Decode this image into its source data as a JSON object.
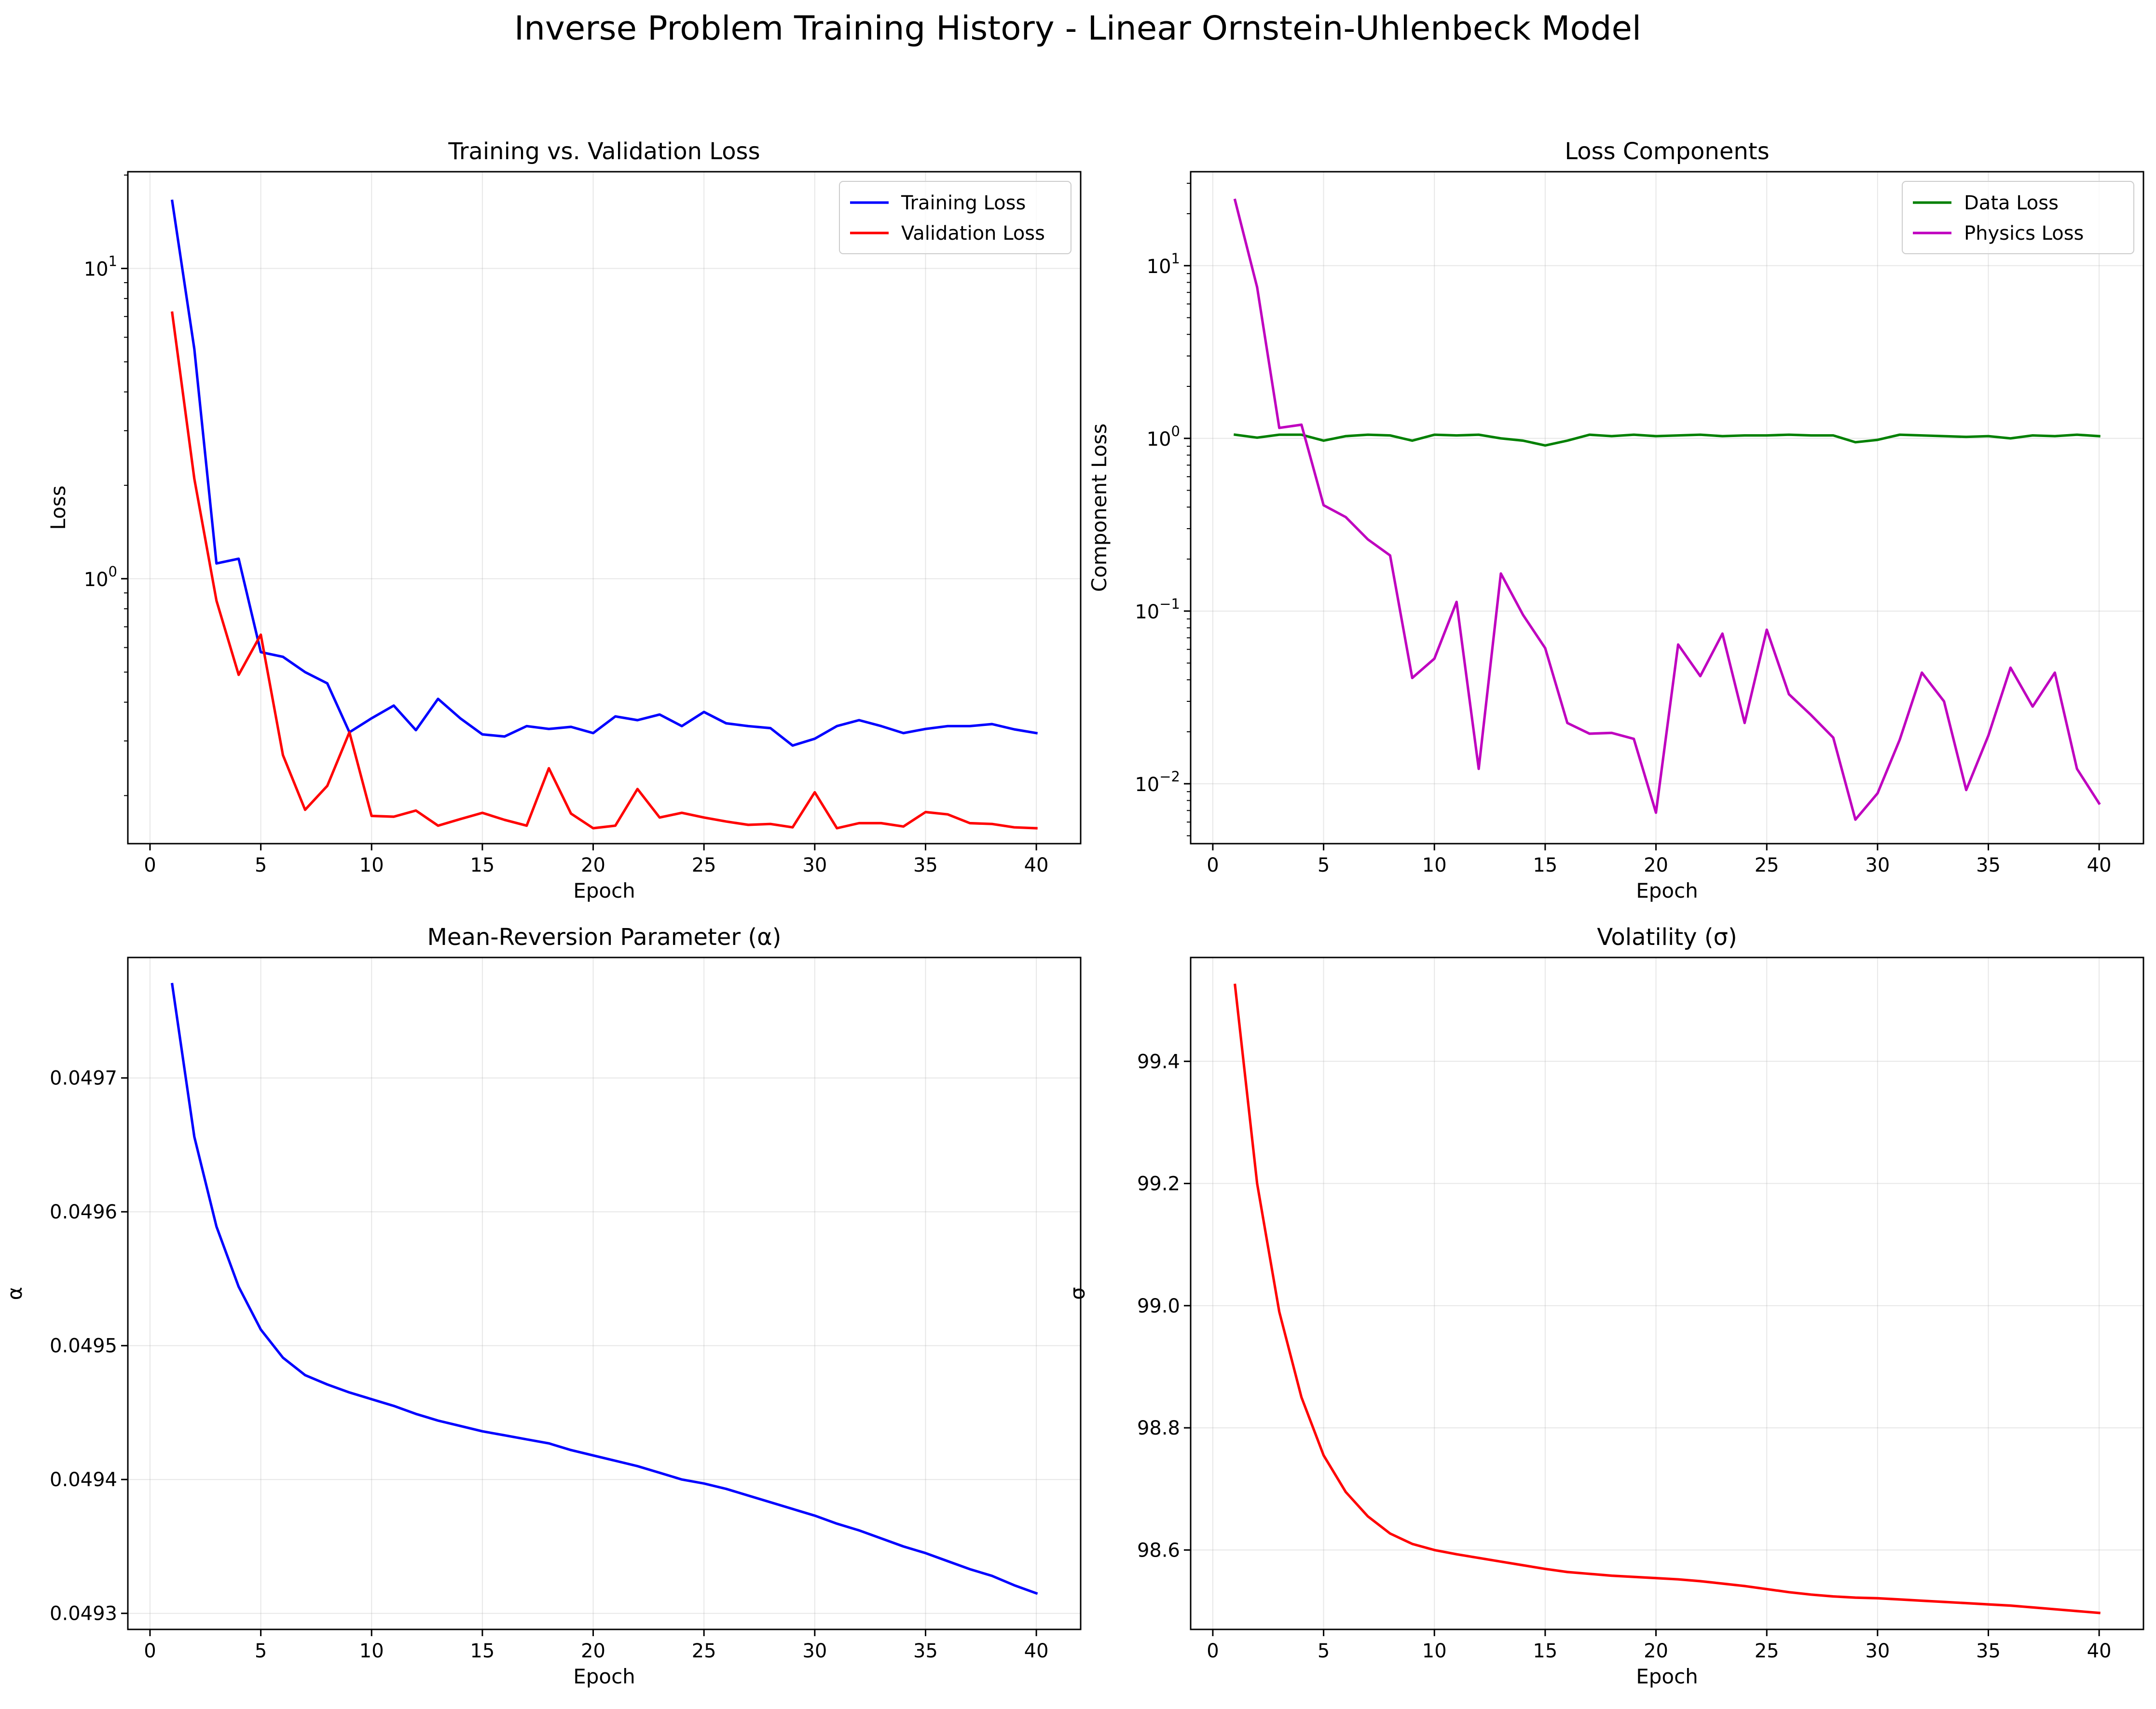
{
  "figure": {
    "title": "Inverse Problem Training History - Linear Ornstein-Uhlenbeck Model"
  },
  "chart_data": [
    {
      "type": "line",
      "title": "Training vs. Validation Loss",
      "xlabel": "Epoch",
      "ylabel": "Loss",
      "yscale": "log",
      "xlim": [
        -1,
        42
      ],
      "ylim": [
        0.14,
        20.5
      ],
      "xticks": [
        "0",
        "5",
        "10",
        "15",
        "20",
        "25",
        "30",
        "35",
        "40"
      ],
      "yticks": [
        {
          "value": 1,
          "base": "10",
          "exp": "0"
        },
        {
          "value": 10,
          "base": "10",
          "exp": "1"
        }
      ],
      "grid": true,
      "legend": "upper right",
      "x": [
        1,
        2,
        3,
        4,
        5,
        6,
        7,
        8,
        9,
        10,
        11,
        12,
        13,
        14,
        15,
        16,
        17,
        18,
        19,
        20,
        21,
        22,
        23,
        24,
        25,
        26,
        27,
        28,
        29,
        30,
        31,
        32,
        33,
        34,
        35,
        36,
        37,
        38,
        39,
        40
      ],
      "series": [
        {
          "name": "Training Loss",
          "color": "#0000ff",
          "values": [
            16.5,
            5.5,
            1.12,
            1.16,
            0.58,
            0.56,
            0.5,
            0.46,
            0.32,
            0.355,
            0.39,
            0.325,
            0.41,
            0.355,
            0.315,
            0.31,
            0.335,
            0.328,
            0.333,
            0.318,
            0.36,
            0.35,
            0.365,
            0.335,
            0.372,
            0.342,
            0.335,
            0.33,
            0.29,
            0.305,
            0.335,
            0.35,
            0.335,
            0.318,
            0.328,
            0.335,
            0.335,
            0.34,
            0.327,
            0.318
          ]
        },
        {
          "name": "Validation Loss",
          "color": "#ff0000",
          "values": [
            7.2,
            2.1,
            0.85,
            0.49,
            0.66,
            0.27,
            0.18,
            0.215,
            0.32,
            0.172,
            0.171,
            0.179,
            0.16,
            0.168,
            0.176,
            0.167,
            0.16,
            0.245,
            0.175,
            0.157,
            0.16,
            0.21,
            0.17,
            0.176,
            0.17,
            0.165,
            0.161,
            0.162,
            0.158,
            0.205,
            0.157,
            0.163,
            0.163,
            0.159,
            0.177,
            0.174,
            0.163,
            0.162,
            0.158,
            0.157
          ]
        }
      ]
    },
    {
      "type": "line",
      "title": "Loss Components",
      "xlabel": "Epoch",
      "ylabel": "Component Loss",
      "yscale": "log",
      "xlim": [
        -1,
        42
      ],
      "ylim": [
        0.0045,
        35
      ],
      "xticks": [
        "0",
        "5",
        "10",
        "15",
        "20",
        "25",
        "30",
        "35",
        "40"
      ],
      "yticks": [
        {
          "value": 0.01,
          "base": "10",
          "exp": "−2"
        },
        {
          "value": 0.1,
          "base": "10",
          "exp": "−1"
        },
        {
          "value": 1,
          "base": "10",
          "exp": "0"
        },
        {
          "value": 10,
          "base": "10",
          "exp": "1"
        }
      ],
      "grid": true,
      "legend": "upper right",
      "x": [
        1,
        2,
        3,
        4,
        5,
        6,
        7,
        8,
        9,
        10,
        11,
        12,
        13,
        14,
        15,
        16,
        17,
        18,
        19,
        20,
        21,
        22,
        23,
        24,
        25,
        26,
        27,
        28,
        29,
        30,
        31,
        32,
        33,
        34,
        35,
        36,
        37,
        38,
        39,
        40
      ],
      "series": [
        {
          "name": "Data Loss",
          "color": "#008000",
          "values": [
            1.05,
            1.01,
            1.05,
            1.05,
            0.97,
            1.03,
            1.05,
            1.04,
            0.97,
            1.05,
            1.04,
            1.05,
            1.0,
            0.97,
            0.91,
            0.97,
            1.05,
            1.03,
            1.05,
            1.03,
            1.04,
            1.05,
            1.03,
            1.04,
            1.04,
            1.05,
            1.04,
            1.04,
            0.95,
            0.98,
            1.05,
            1.04,
            1.03,
            1.02,
            1.03,
            1.0,
            1.04,
            1.03,
            1.05,
            1.03
          ]
        },
        {
          "name": "Physics Loss",
          "color": "#bf00bf",
          "values": [
            24.0,
            7.5,
            1.15,
            1.2,
            0.41,
            0.35,
            0.26,
            0.21,
            0.041,
            0.053,
            0.113,
            0.0122,
            0.165,
            0.095,
            0.061,
            0.0225,
            0.0195,
            0.0197,
            0.0182,
            0.0068,
            0.064,
            0.042,
            0.074,
            0.0225,
            0.078,
            0.033,
            0.025,
            0.0185,
            0.0062,
            0.0088,
            0.018,
            0.044,
            0.03,
            0.0092,
            0.019,
            0.047,
            0.028,
            0.044,
            0.0122,
            0.0077
          ]
        }
      ]
    },
    {
      "type": "line",
      "title": "Mean-Reversion Parameter (α)",
      "xlabel": "Epoch",
      "ylabel": "α",
      "yscale": "linear",
      "xlim": [
        -1,
        42
      ],
      "ylim": [
        0.049288,
        0.04979
      ],
      "xticks": [
        "0",
        "5",
        "10",
        "15",
        "20",
        "25",
        "30",
        "35",
        "40"
      ],
      "yticks": [
        "0.0493",
        "0.0494",
        "0.0495",
        "0.0496",
        "0.0497"
      ],
      "grid": true,
      "x": [
        1,
        2,
        3,
        4,
        5,
        6,
        7,
        8,
        9,
        10,
        11,
        12,
        13,
        14,
        15,
        16,
        17,
        18,
        19,
        20,
        21,
        22,
        23,
        24,
        25,
        26,
        27,
        28,
        29,
        30,
        31,
        32,
        33,
        34,
        35,
        36,
        37,
        38,
        39,
        40
      ],
      "series": [
        {
          "color": "#0000ff",
          "values": [
            0.04977,
            0.049656,
            0.049589,
            0.049544,
            0.049512,
            0.049491,
            0.049478,
            0.049471,
            0.049465,
            0.04946,
            0.049455,
            0.049449,
            0.049444,
            0.04944,
            0.049436,
            0.049433,
            0.04943,
            0.049427,
            0.049422,
            0.049418,
            0.049414,
            0.04941,
            0.049405,
            0.0494,
            0.049397,
            0.049393,
            0.049388,
            0.049383,
            0.049378,
            0.049373,
            0.049367,
            0.049362,
            0.049356,
            0.04935,
            0.049345,
            0.049339,
            0.049333,
            0.049328,
            0.049321,
            0.049315
          ]
        }
      ]
    },
    {
      "type": "line",
      "title": "Volatility (σ)",
      "xlabel": "Epoch",
      "ylabel": "σ",
      "yscale": "linear",
      "xlim": [
        -1,
        42
      ],
      "ylim": [
        98.47,
        99.57
      ],
      "xticks": [
        "0",
        "5",
        "10",
        "15",
        "20",
        "25",
        "30",
        "35",
        "40"
      ],
      "yticks": [
        "98.6",
        "98.8",
        "99.0",
        "99.2",
        "99.4"
      ],
      "grid": true,
      "x": [
        1,
        2,
        3,
        4,
        5,
        6,
        7,
        8,
        9,
        10,
        11,
        12,
        13,
        14,
        15,
        16,
        17,
        18,
        19,
        20,
        21,
        22,
        23,
        24,
        25,
        26,
        27,
        28,
        29,
        30,
        31,
        32,
        33,
        34,
        35,
        36,
        37,
        38,
        39,
        40
      ],
      "series": [
        {
          "color": "#ff0000",
          "values": [
            99.525,
            99.2,
            98.99,
            98.85,
            98.755,
            98.695,
            98.655,
            98.627,
            98.61,
            98.6,
            98.593,
            98.587,
            98.581,
            98.575,
            98.569,
            98.564,
            98.561,
            98.558,
            98.556,
            98.554,
            98.552,
            98.549,
            98.545,
            98.541,
            98.536,
            98.531,
            98.527,
            98.524,
            98.522,
            98.521,
            98.519,
            98.517,
            98.515,
            98.513,
            98.511,
            98.509,
            98.506,
            98.503,
            98.5,
            98.497
          ]
        }
      ]
    }
  ]
}
